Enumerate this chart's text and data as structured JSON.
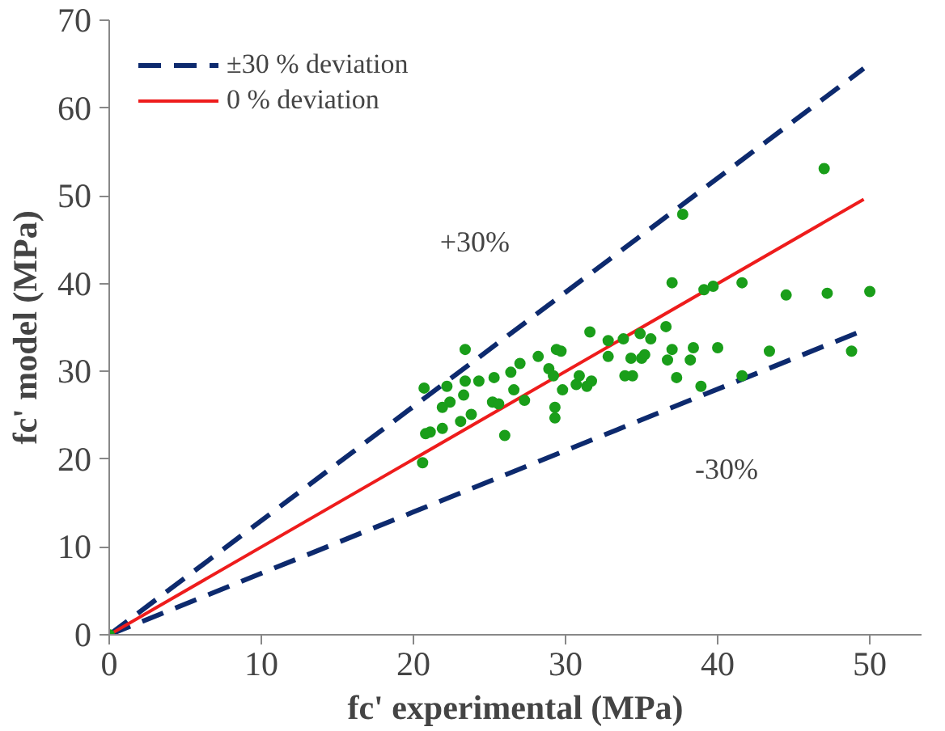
{
  "chart_data": {
    "type": "scatter",
    "xlabel": "fc' experimental (MPa)",
    "ylabel": "fc' model (MPa)",
    "xlim": [
      0,
      53.4
    ],
    "ylim": [
      0,
      70
    ],
    "xticks": [
      0,
      10,
      20,
      30,
      40,
      50
    ],
    "yticks": [
      0,
      10,
      20,
      30,
      40,
      50,
      60,
      70
    ],
    "grid": false,
    "legend": "top left",
    "annotations": [
      "+30%",
      "-30%"
    ],
    "series": [
      {
        "name": "±30 % deviation",
        "type": "line",
        "line_style": "dashed",
        "color": "#0d2a6e",
        "x": [
          0,
          49.6
        ],
        "values": [
          0,
          64.5
        ]
      },
      {
        "type": "line",
        "line_style": "dashed",
        "color": "#0d2a6e",
        "x": [
          0,
          49.6
        ],
        "values": [
          0,
          34.7
        ]
      },
      {
        "name": "0 % deviation",
        "type": "line",
        "line_style": "solid",
        "color": "#ee1c1c",
        "x": [
          0,
          49.6
        ],
        "values": [
          0,
          49.6
        ]
      },
      {
        "marker": "circle",
        "color": "#1a9e1a",
        "x": [
          47.0,
          37.7,
          37.0,
          39.1,
          39.7,
          41.6,
          44.5,
          47.2,
          50.0,
          36.6,
          37.0,
          38.4,
          40.0,
          36.7,
          38.2,
          43.4,
          48.8,
          37.3,
          38.9,
          41.6,
          23.4,
          20.7,
          31.6,
          32.8,
          33.8,
          34.9,
          29.4,
          29.7,
          28.2,
          27.0,
          28.9,
          29.2,
          26.4,
          25.3,
          24.3,
          23.4,
          22.2,
          23.3,
          22.4,
          21.9,
          26.6,
          25.2,
          25.6,
          27.3,
          23.8,
          23.1,
          21.9,
          21.1,
          20.8,
          26.0,
          29.3,
          29.3,
          29.8,
          30.7,
          31.4,
          31.7,
          32.8,
          34.3,
          35.0,
          34.4,
          33.9,
          35.6,
          20.6,
          30.9,
          35.2,
          0
        ],
        "values": [
          53.1,
          47.9,
          40.1,
          39.3,
          39.7,
          40.1,
          38.7,
          38.9,
          39.1,
          35.1,
          32.5,
          32.7,
          32.7,
          31.3,
          31.3,
          32.3,
          32.3,
          29.3,
          28.3,
          29.5,
          32.5,
          28.1,
          34.5,
          33.5,
          33.7,
          34.3,
          32.5,
          32.3,
          31.7,
          30.9,
          30.3,
          29.5,
          29.9,
          29.3,
          28.9,
          28.9,
          28.3,
          27.3,
          26.5,
          25.9,
          27.9,
          26.5,
          26.3,
          26.7,
          25.1,
          24.3,
          23.5,
          23.1,
          22.9,
          22.7,
          25.9,
          24.7,
          27.9,
          28.5,
          28.3,
          28.9,
          31.7,
          31.5,
          31.5,
          29.5,
          29.5,
          33.7,
          19.6,
          29.5,
          31.9,
          0
        ]
      }
    ]
  }
}
